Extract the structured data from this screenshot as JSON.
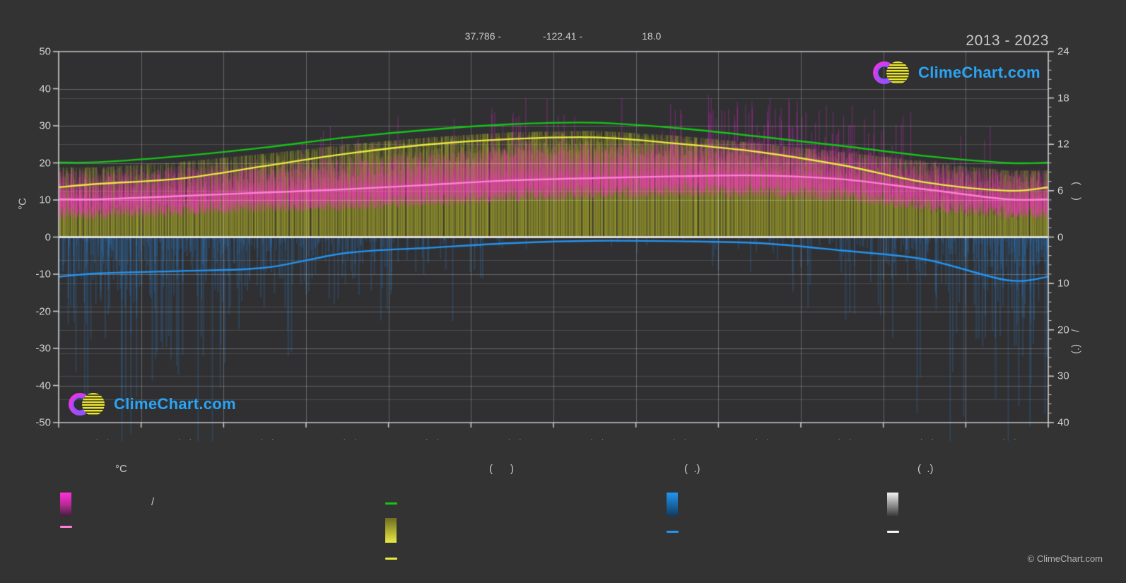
{
  "page": {
    "background": "#333333",
    "plot_background": "#303032"
  },
  "header": {
    "title": "2013 - 2023",
    "annotation": {
      "latitude": "37.786 -",
      "longitude": "-122.41 -",
      "altitude": "18.0"
    }
  },
  "watermark": {
    "text": "ClimeChart.com"
  },
  "footer": {
    "copyright": "© ClimeChart.com"
  },
  "axes": {
    "left": {
      "unit": "°C",
      "ticks": [
        50,
        40,
        30,
        20,
        10,
        0,
        -10,
        -20,
        -30,
        -40,
        -50
      ]
    },
    "right_top": {
      "ticks": [
        24,
        18,
        12,
        6,
        0
      ],
      "rotated_label": "(    )"
    },
    "right_bottom": {
      "ticks": [
        10,
        20,
        30,
        40
      ],
      "rotated_label": "(.)    /"
    },
    "x": {
      "tick_label": "· ·",
      "month_count": 12
    }
  },
  "legend": {
    "temperature": {
      "header": "°C",
      "range_label": "/",
      "gradient": [
        "#ff30d8",
        "#b82a96",
        "#3f2038"
      ],
      "line_color": "#ff7fd8"
    },
    "sun": {
      "header": "(      )",
      "daylight_line_color": "#17c317",
      "gradient": [
        "#6e6e20",
        "#e9e943"
      ],
      "line_color": "#e9e943"
    },
    "precipitation": {
      "header": "(  .)",
      "gradient": [
        "#2196f3",
        "#123c60"
      ],
      "line_color": "#2493ef"
    },
    "snow": {
      "header": "(  .)",
      "gradient": [
        "#f2f2f2",
        "#3a3a3a"
      ],
      "line_color": "#f5f5f5"
    }
  },
  "colors": {
    "frame": "#c8c8c8",
    "grid_major": "rgba(255,255,255,0.26)",
    "grid_minor": "rgba(255,255,255,0.13)",
    "zero_line": "#f2f2f2",
    "daylight_line": "#17c317",
    "sunshine_line": "#e9e943",
    "temp_mean_line": "#ff7fd8",
    "precip_line": "#2493ef",
    "sun_bar": "rgba(185,185,42,0.18)",
    "temp_bar": "rgba(255,45,200,0.13)",
    "temp_bar_bright": "rgba(255,70,205,0.10)",
    "temp_spike": "rgba(200,40,185,0.38)",
    "precip_bar": "rgba(45,125,200,0.24)",
    "logo_ring_outer": "#f431e3",
    "logo_ring_inner": "#7f57ff",
    "logo_sun": "#e8e33a",
    "logo_text": "#2aa4f4"
  },
  "chart_data": {
    "type": "line",
    "title": "2013 - 2023",
    "location": {
      "latitude": "37.786",
      "longitude": "-122.41",
      "altitude": "18.0"
    },
    "x_months": [
      1,
      2,
      3,
      4,
      5,
      6,
      7,
      8,
      9,
      10,
      11,
      12
    ],
    "ylim_left_celsius": [
      -50,
      50
    ],
    "ylim_right_sun_hours": [
      0,
      24
    ],
    "ylim_right_precip_mm_downward": [
      0,
      40
    ],
    "grid": true,
    "legend_position": "bottom",
    "series": [
      {
        "name": "daylight_hours",
        "axis": "right_hours",
        "color": "#17c317",
        "values": [
          9.7,
          10.5,
          11.6,
          12.9,
          13.9,
          14.6,
          14.8,
          14.1,
          13.0,
          11.8,
          10.5,
          9.6
        ]
      },
      {
        "name": "sunshine_hours_avg",
        "axis": "right_hours",
        "color": "#e9e943",
        "values": [
          6.9,
          7.6,
          9.2,
          10.8,
          12.0,
          12.7,
          12.9,
          12.1,
          11.0,
          9.3,
          7.1,
          6.0
        ]
      },
      {
        "name": "temperature_mean_c",
        "axis": "left_celsius",
        "color": "#ff7fd8",
        "values": [
          10.2,
          11.1,
          12.0,
          12.9,
          14.1,
          15.3,
          15.9,
          16.4,
          16.6,
          15.6,
          12.9,
          10.2
        ]
      },
      {
        "name": "precipitation_mm_per_day_avg",
        "axis": "right_mm_down",
        "color": "#2493ef",
        "values": [
          7.8,
          7.3,
          6.6,
          3.4,
          2.3,
          1.3,
          0.8,
          0.9,
          1.3,
          2.9,
          4.8,
          9.3
        ]
      },
      {
        "name": "temperature_daily_max_mean_c",
        "axis": "left_celsius",
        "color": "#c23d9a",
        "values": [
          14.5,
          15.5,
          16.5,
          17.5,
          19.0,
          21.0,
          21.5,
          22.0,
          22.5,
          21.0,
          17.0,
          14.5
        ]
      },
      {
        "name": "temperature_daily_min_mean_c",
        "axis": "left_celsius",
        "color": "#c23d9a",
        "values": [
          7.5,
          8.3,
          9.2,
          9.8,
          11.0,
          12.3,
          13.0,
          13.5,
          13.2,
          12.3,
          9.8,
          7.5
        ]
      }
    ],
    "daily_texture": {
      "sun_spread_h": [
        4.0,
        4.0,
        4.0,
        3.5,
        3.0,
        2.5,
        2.0,
        2.5,
        3.0,
        3.5,
        4.0,
        4.0
      ],
      "wet_day_probability": [
        0.45,
        0.42,
        0.38,
        0.22,
        0.12,
        0.05,
        0.02,
        0.03,
        0.06,
        0.15,
        0.3,
        0.5
      ],
      "rain_mm_mean": [
        9,
        8,
        8,
        5,
        4,
        3,
        2,
        2,
        3,
        6,
        8,
        10
      ],
      "heat_spike_probability": [
        0.0,
        0.0,
        0.0,
        0.02,
        0.03,
        0.05,
        0.03,
        0.06,
        0.14,
        0.12,
        0.02,
        0.0
      ],
      "rain_mm_max": 44
    }
  }
}
